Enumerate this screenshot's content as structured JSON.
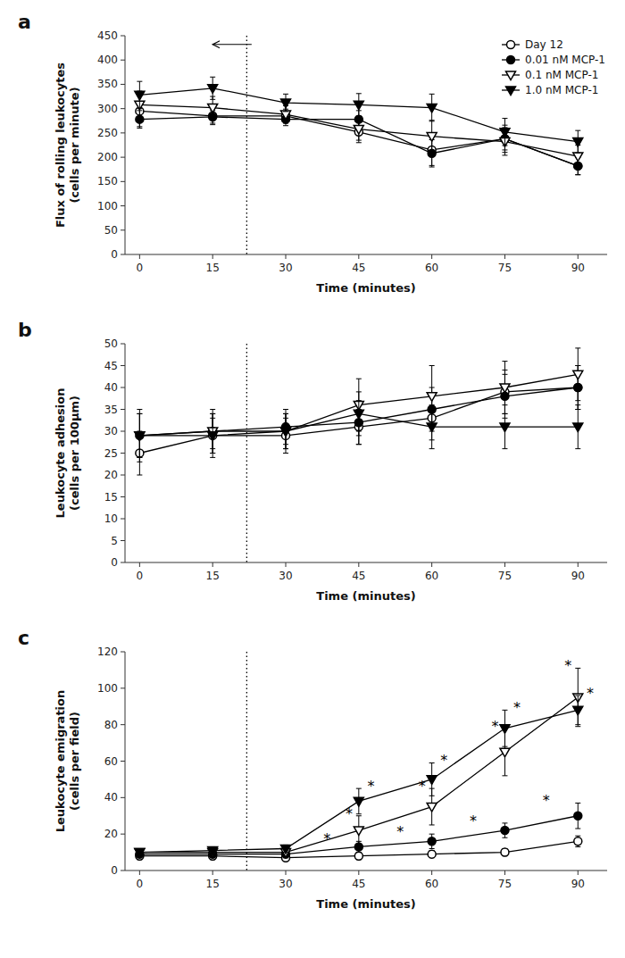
{
  "chart_data": [
    {
      "type": "line",
      "title": "a",
      "xlabel": "Time (minutes)",
      "ylabel": "Flux of rolling leukocytes\n(cells per minute)",
      "x": [
        0,
        15,
        30,
        45,
        60,
        75,
        90
      ],
      "xlim": [
        -3,
        96
      ],
      "xticks": [
        0,
        15,
        30,
        45,
        60,
        75,
        90
      ],
      "ylim": [
        0,
        450
      ],
      "yticks": [
        0,
        50,
        100,
        150,
        200,
        250,
        300,
        350,
        400,
        450
      ],
      "grid": false,
      "legend": "upper right",
      "series": [
        {
          "name": "Day 12",
          "color": "#000000",
          "marker": "circle-open",
          "values": [
            295,
            285,
            285,
            252,
            215,
            238,
            182
          ],
          "errors": [
            32,
            18,
            14,
            22,
            32,
            28,
            18
          ]
        },
        {
          "name": "0.01 nM MCP-1",
          "color": "#000000",
          "marker": "circle-filled",
          "values": [
            278,
            283,
            278,
            278,
            208,
            238,
            182
          ],
          "errors": [
            18,
            13,
            13,
            18,
            28,
            23,
            18
          ]
        },
        {
          "name": "0.1 nM MCP-1",
          "color": "#000000",
          "marker": "triangle-down-open",
          "values": [
            308,
            302,
            288,
            258,
            243,
            232,
            202
          ],
          "errors": [
            28,
            23,
            18,
            23,
            33,
            28,
            23
          ]
        },
        {
          "name": "1.0 nM MCP-1",
          "color": "#000000",
          "marker": "triangle-down-filled",
          "values": [
            328,
            342,
            312,
            308,
            302,
            252,
            232
          ],
          "errors": [
            28,
            23,
            18,
            23,
            28,
            28,
            23
          ]
        }
      ],
      "annotations": [
        {
          "type": "vline",
          "x": 22,
          "line_style": "dotted"
        },
        {
          "type": "arrow",
          "x": 23,
          "x_end": 15,
          "y": 432
        }
      ]
    },
    {
      "type": "line",
      "title": "b",
      "xlabel": "Time (minutes)",
      "ylabel": "Leukocyte adhesion\n(cells per 100μm)",
      "x": [
        0,
        15,
        30,
        45,
        60,
        75,
        90
      ],
      "xlim": [
        -3,
        96
      ],
      "xticks": [
        0,
        15,
        30,
        45,
        60,
        75,
        90
      ],
      "ylim": [
        0,
        50
      ],
      "yticks": [
        0,
        5,
        10,
        15,
        20,
        25,
        30,
        35,
        40,
        45,
        50
      ],
      "grid": false,
      "series": [
        {
          "color": "#000000",
          "marker": "circle-open",
          "values": [
            25,
            29,
            29,
            31,
            33,
            39,
            40
          ],
          "errors": [
            5,
            4,
            4,
            4,
            5,
            5,
            5
          ]
        },
        {
          "color": "#000000",
          "marker": "circle-filled",
          "values": [
            29,
            30,
            31,
            32,
            35,
            38,
            40
          ],
          "errors": [
            5,
            4,
            4,
            5,
            5,
            5,
            5
          ]
        },
        {
          "color": "#000000",
          "marker": "triangle-down-open",
          "values": [
            29,
            30,
            30,
            36,
            38,
            40,
            43
          ],
          "errors": [
            6,
            5,
            4,
            6,
            7,
            6,
            6
          ]
        },
        {
          "color": "#000000",
          "marker": "triangle-down-filled",
          "values": [
            29,
            29,
            30,
            34,
            31,
            31,
            31
          ],
          "errors": [
            5,
            5,
            4,
            5,
            5,
            5,
            5
          ]
        }
      ],
      "annotations": [
        {
          "type": "vline",
          "x": 22,
          "line_style": "dotted"
        }
      ]
    },
    {
      "type": "line",
      "title": "c",
      "xlabel": "Time (minutes)",
      "ylabel": "Leukocyte emigration\n(cells per field)",
      "x": [
        0,
        15,
        30,
        45,
        60,
        75,
        90
      ],
      "xlim": [
        -3,
        96
      ],
      "xticks": [
        0,
        15,
        30,
        45,
        60,
        75,
        90
      ],
      "ylim": [
        0,
        120
      ],
      "yticks": [
        0,
        20,
        40,
        60,
        80,
        100,
        120
      ],
      "grid": false,
      "series": [
        {
          "color": "#000000",
          "marker": "circle-open",
          "values": [
            8,
            8,
            7,
            8,
            9,
            10,
            16
          ],
          "errors": [
            2,
            2,
            1,
            2,
            2,
            2,
            3
          ]
        },
        {
          "color": "#000000",
          "marker": "circle-filled",
          "values": [
            9,
            9,
            9,
            13,
            16,
            22,
            30
          ],
          "errors": [
            2,
            2,
            2,
            3,
            4,
            4,
            7
          ]
        },
        {
          "color": "#000000",
          "marker": "triangle-down-open",
          "values": [
            10,
            10,
            10,
            22,
            35,
            65,
            95
          ],
          "errors": [
            2,
            2,
            2,
            8,
            10,
            13,
            16
          ]
        },
        {
          "color": "#000000",
          "marker": "triangle-down-filled",
          "values": [
            10,
            11,
            12,
            38,
            50,
            78,
            88
          ],
          "errors": [
            2,
            2,
            2,
            7,
            9,
            10,
            8
          ]
        }
      ],
      "annotations": [
        {
          "type": "vline",
          "x": 22,
          "line_style": "dotted"
        },
        {
          "type": "text",
          "text": "*",
          "x": 47.5,
          "y": 48
        },
        {
          "type": "text",
          "text": "*",
          "x": 62.5,
          "y": 62
        },
        {
          "type": "text",
          "text": "*",
          "x": 77.5,
          "y": 91
        },
        {
          "type": "text",
          "text": "*",
          "x": 92.5,
          "y": 99
        },
        {
          "type": "text",
          "text": "*",
          "x": 43,
          "y": 33
        },
        {
          "type": "text",
          "text": "*",
          "x": 58,
          "y": 48
        },
        {
          "type": "text",
          "text": "*",
          "x": 73,
          "y": 81
        },
        {
          "type": "text",
          "text": "*",
          "x": 88,
          "y": 114
        },
        {
          "type": "text",
          "text": "*",
          "x": 38.5,
          "y": 19
        },
        {
          "type": "text",
          "text": "*",
          "x": 53.5,
          "y": 23
        },
        {
          "type": "text",
          "text": "*",
          "x": 68.5,
          "y": 29
        },
        {
          "type": "text",
          "text": "*",
          "x": 83.5,
          "y": 40
        }
      ]
    }
  ]
}
